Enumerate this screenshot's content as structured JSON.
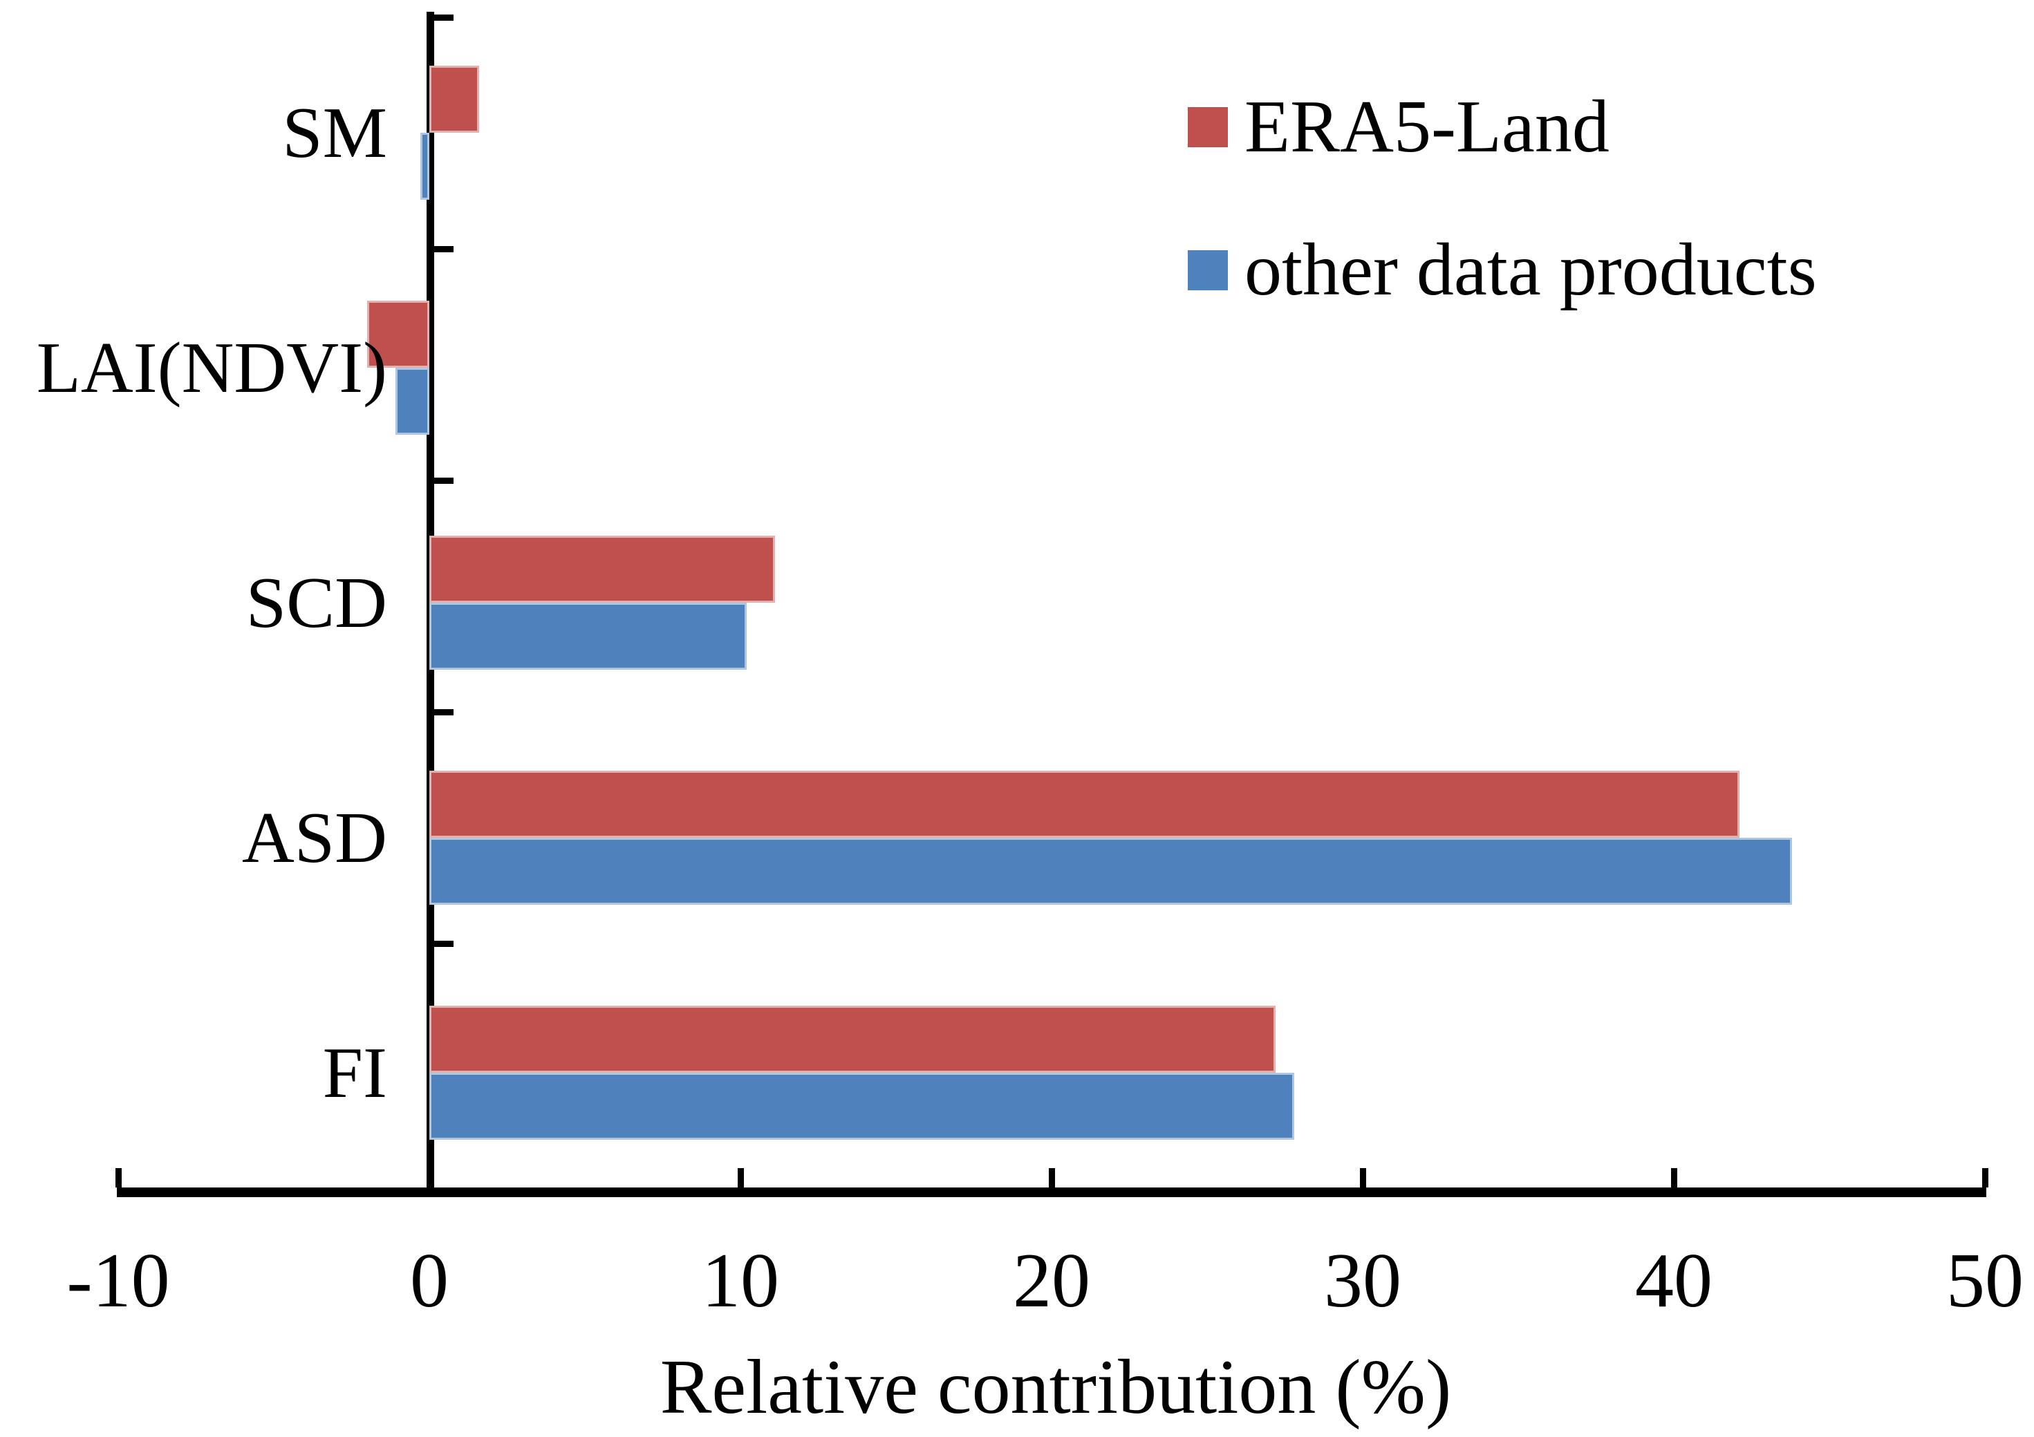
{
  "chart_data": {
    "type": "bar",
    "orientation": "horizontal",
    "title": "",
    "xlabel": "Relative contribution (%)",
    "ylabel": "",
    "xlim": [
      -10,
      50
    ],
    "xticks": [
      -10,
      0,
      10,
      20,
      30,
      40,
      50
    ],
    "grid": false,
    "legend_position": "upper right",
    "categories": [
      "SM",
      "LAI(NDVI)",
      "SCD",
      "ASD",
      "FI"
    ],
    "series": [
      {
        "name": "ERA5-Land",
        "color": "#C0504D",
        "values": [
          1.6,
          -2.0,
          11.1,
          42.1,
          27.2
        ]
      },
      {
        "name": "other data products",
        "color": "#4F81BD",
        "values": [
          -0.3,
          -1.1,
          10.2,
          43.8,
          27.8
        ]
      }
    ]
  },
  "legend": {
    "items": [
      {
        "label": "ERA5-Land",
        "color": "#C0504D"
      },
      {
        "label": "other data products",
        "color": "#4F81BD"
      }
    ]
  },
  "axis": {
    "x_title": "Relative contribution (%)",
    "x_tick_labels": [
      "-10",
      "0",
      "10",
      "20",
      "30",
      "40",
      "50"
    ]
  }
}
